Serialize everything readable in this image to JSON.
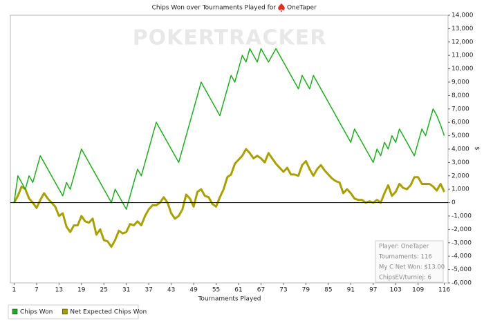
{
  "chart_data": {
    "type": "line",
    "title": "Chips Won over Tournaments Played for",
    "player": "OneTaper",
    "watermark": "POKERTRACKER",
    "x_label": "Tournaments Played",
    "y_label": "$",
    "zero_line": true,
    "legend": "bottom-left",
    "xlim": [
      0,
      117
    ],
    "xticks": [
      1,
      7,
      13,
      19,
      25,
      31,
      37,
      43,
      49,
      55,
      61,
      67,
      73,
      79,
      85,
      91,
      97,
      103,
      109,
      116
    ],
    "ylim": [
      -6000,
      14000
    ],
    "yticks": [
      {
        "value": -6000,
        "label": "-6,000"
      },
      {
        "value": -5000,
        "label": "-5,000"
      },
      {
        "value": -4000,
        "label": "-4,000"
      },
      {
        "value": -3000,
        "label": "-3,000"
      },
      {
        "value": -2000,
        "label": "-2,000"
      },
      {
        "value": -1000,
        "label": "-1,000"
      },
      0,
      {
        "value": 1000,
        "label": "1,000"
      },
      {
        "value": 2000,
        "label": "2,000"
      },
      {
        "value": 3000,
        "label": "3,000"
      },
      {
        "value": 4000,
        "label": "4,000"
      },
      {
        "value": 5000,
        "label": "5,000"
      },
      {
        "value": 6000,
        "label": "6,000"
      },
      {
        "value": 7000,
        "label": "7,000"
      },
      {
        "value": 8000,
        "label": "8,000"
      },
      {
        "value": 9000,
        "label": "9,000"
      },
      {
        "value": 10000,
        "label": "10,000"
      },
      {
        "value": 11000,
        "label": "11,000"
      },
      {
        "value": 12000,
        "label": "12,000"
      },
      {
        "value": 13000,
        "label": "13,000"
      },
      {
        "value": 14000,
        "label": "14,000"
      }
    ],
    "x": [
      1,
      2,
      3,
      4,
      5,
      6,
      7,
      8,
      9,
      10,
      11,
      12,
      13,
      14,
      15,
      16,
      17,
      18,
      19,
      20,
      21,
      22,
      23,
      24,
      25,
      26,
      27,
      28,
      29,
      30,
      31,
      32,
      33,
      34,
      35,
      36,
      37,
      38,
      39,
      40,
      41,
      42,
      43,
      44,
      45,
      46,
      47,
      48,
      49,
      50,
      51,
      52,
      53,
      54,
      55,
      56,
      57,
      58,
      59,
      60,
      61,
      62,
      63,
      64,
      65,
      66,
      67,
      68,
      69,
      70,
      71,
      72,
      73,
      74,
      75,
      76,
      77,
      78,
      79,
      80,
      81,
      82,
      83,
      84,
      85,
      86,
      87,
      88,
      89,
      90,
      91,
      92,
      93,
      94,
      95,
      96,
      97,
      98,
      99,
      100,
      101,
      102,
      103,
      104,
      105,
      106,
      107,
      108,
      109,
      110,
      111,
      112,
      113,
      114,
      115,
      116
    ],
    "series": [
      {
        "name": "Chips Won",
        "color": "#22aa22",
        "width": 1.5,
        "values": [
          0,
          2000,
          1500,
          1000,
          2000,
          1500,
          2500,
          3500,
          3000,
          2500,
          2000,
          1500,
          1000,
          500,
          1500,
          1000,
          2000,
          3000,
          4000,
          3500,
          3000,
          2500,
          2000,
          1500,
          1000,
          500,
          0,
          1000,
          500,
          0,
          -500,
          500,
          1500,
          2500,
          2000,
          3000,
          4000,
          5000,
          6000,
          5500,
          5000,
          4500,
          4000,
          3500,
          3000,
          4000,
          5000,
          6000,
          7000,
          8000,
          9000,
          8500,
          8000,
          7500,
          7000,
          6500,
          7500,
          8500,
          9500,
          9000,
          10000,
          11000,
          10500,
          11500,
          11000,
          10500,
          11500,
          11000,
          10500,
          11000,
          11500,
          11000,
          10500,
          10000,
          9500,
          9000,
          8500,
          9500,
          9000,
          8500,
          9500,
          9000,
          8500,
          8000,
          7500,
          7000,
          6500,
          6000,
          5500,
          5000,
          4500,
          5500,
          5000,
          4500,
          4000,
          3500,
          3000,
          4000,
          3500,
          4500,
          4000,
          5000,
          4500,
          5500,
          5000,
          4500,
          4000,
          3500,
          4500,
          5500,
          5000,
          6000,
          7000,
          6500,
          5800,
          5000
        ]
      },
      {
        "name": "Net Expected Chips Won",
        "color": "#a8a000",
        "width": 3,
        "values": [
          0,
          500,
          1200,
          1000,
          300,
          0,
          -400,
          200,
          700,
          300,
          0,
          -300,
          -1000,
          -800,
          -1800,
          -2200,
          -1700,
          -1700,
          -1000,
          -1400,
          -1500,
          -1200,
          -2400,
          -2000,
          -2800,
          -2900,
          -3300,
          -2800,
          -2100,
          -2300,
          -2200,
          -1600,
          -1700,
          -1400,
          -1700,
          -1000,
          -500,
          -200,
          -200,
          0,
          400,
          0,
          -800,
          -1200,
          -1000,
          -500,
          600,
          300,
          -300,
          800,
          1000,
          500,
          400,
          -100,
          -300,
          400,
          1000,
          1900,
          2100,
          2900,
          3200,
          3500,
          4000,
          3700,
          3300,
          3500,
          3300,
          3000,
          3700,
          3300,
          2900,
          2600,
          2300,
          2600,
          2100,
          2100,
          2000,
          2800,
          3100,
          2500,
          2000,
          2500,
          2800,
          2400,
          2100,
          1800,
          1600,
          1500,
          700,
          1000,
          700,
          300,
          200,
          200,
          0,
          100,
          0,
          200,
          0,
          700,
          1300,
          500,
          800,
          1400,
          1100,
          1000,
          1300,
          1900,
          1900,
          1400,
          1400,
          1400,
          1200,
          900,
          1400,
          800
        ]
      }
    ],
    "info": [
      "Player: OneTaper",
      "Tournaments: 116",
      "My C Net Won: $13.00",
      "ChipsEV/turniej: 6"
    ]
  }
}
